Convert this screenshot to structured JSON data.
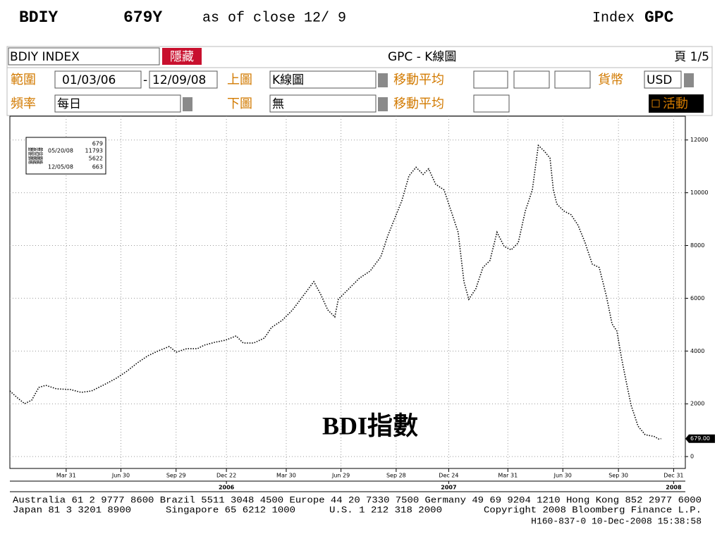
{
  "header": {
    "ticker": "BDIY",
    "price": "679Y",
    "as_of": "as of close 12/ 9",
    "index_label": "Index",
    "source": "GPC"
  },
  "toolbar": {
    "security": "BDIY INDEX",
    "hide_button": "隱藏",
    "screen_title": "GPC - K線圖",
    "page": "頁 1/5",
    "range_label": "範圍",
    "start_date": "01/03/06",
    "range_sep": "-",
    "end_date": "12/09/08",
    "upper_label": "上圖",
    "upper_value": "K線圖",
    "ma_label_1": "移動平均",
    "currency_label": "貨幣",
    "currency": "USD",
    "freq_label": "頻率",
    "freq_value": "每日",
    "lower_label": "下圖",
    "lower_value": "無",
    "ma_label_2": "移動平均",
    "active_button": "活動"
  },
  "chart_data": {
    "type": "line",
    "annotation": "BDI指數",
    "xlim": [
      2005.99,
      2009.05
    ],
    "ylim": [
      -450,
      12900
    ],
    "grid": true,
    "xticks": [
      {
        "value": 2006.245,
        "label": "Mar 31"
      },
      {
        "value": 2006.493,
        "label": "Jun 30"
      },
      {
        "value": 2006.743,
        "label": "Sep 29"
      },
      {
        "value": 2006.971,
        "label": "Dec 22"
      },
      {
        "value": 2007.242,
        "label": "Mar 30"
      },
      {
        "value": 2007.49,
        "label": "Jun 29"
      },
      {
        "value": 2007.74,
        "label": "Sep 28"
      },
      {
        "value": 2007.978,
        "label": "Dec 24"
      },
      {
        "value": 2008.246,
        "label": "Mar 31"
      },
      {
        "value": 2008.495,
        "label": "Jun 30"
      },
      {
        "value": 2008.747,
        "label": "Sep 30"
      },
      {
        "value": 2008.997,
        "label": "Dec 31"
      }
    ],
    "xtick_years": [
      {
        "value": 2006.971,
        "label": "2006"
      },
      {
        "value": 2007.978,
        "label": "2007"
      },
      {
        "value": 2008.997,
        "label": "2008"
      }
    ],
    "yticks": [
      0,
      2000,
      4000,
      6000,
      8000,
      10000,
      12000
    ],
    "last_price": {
      "value": 679,
      "label": "679.00"
    },
    "legend": [
      {
        "label": "最後價格",
        "value": "679"
      },
      {
        "label": "最高價格",
        "date": "05/20/08",
        "value": "11793"
      },
      {
        "label": "平均價格",
        "value": "5622"
      },
      {
        "label": "最低價格",
        "date": "12/05/08",
        "value": "663"
      }
    ],
    "x": [
      2005.99,
      2006.025,
      2006.057,
      2006.089,
      2006.121,
      2006.153,
      2006.201,
      2006.265,
      2006.313,
      2006.36,
      2006.392,
      2006.424,
      2006.472,
      2006.52,
      2006.568,
      2006.616,
      2006.664,
      2006.712,
      2006.744,
      2006.792,
      2006.84,
      2006.871,
      2006.919,
      2006.967,
      2007.015,
      2007.047,
      2007.095,
      2007.143,
      2007.175,
      2007.223,
      2007.271,
      2007.319,
      2007.367,
      2007.398,
      2007.43,
      2007.462,
      2007.478,
      2007.526,
      2007.574,
      2007.622,
      2007.67,
      2007.702,
      2007.734,
      2007.766,
      2007.798,
      2007.83,
      2007.862,
      2007.887,
      2007.919,
      2007.957,
      2007.989,
      2008.021,
      2008.047,
      2008.069,
      2008.101,
      2008.133,
      2008.165,
      2008.197,
      2008.229,
      2008.261,
      2008.293,
      2008.325,
      2008.357,
      2008.384,
      2008.411,
      2008.437,
      2008.452,
      2008.468,
      2008.5,
      2008.532,
      2008.564,
      2008.596,
      2008.628,
      2008.66,
      2008.692,
      2008.718,
      2008.74,
      2008.762,
      2008.781,
      2008.804,
      2008.836,
      2008.868,
      2008.91,
      2008.93,
      2008.94
    ],
    "series": [
      {
        "name": "BDIY INDEX",
        "color": "#000000",
        "values": [
          2487,
          2220,
          2005,
          2140,
          2620,
          2700,
          2567,
          2540,
          2433,
          2487,
          2620,
          2754,
          2968,
          3235,
          3556,
          3824,
          4011,
          4171,
          3957,
          4091,
          4091,
          4225,
          4332,
          4412,
          4572,
          4305,
          4305,
          4492,
          4893,
          5160,
          5561,
          6096,
          6631,
          6150,
          5561,
          5294,
          5963,
          6364,
          6765,
          7032,
          7567,
          8369,
          9037,
          9706,
          10642,
          10963,
          10695,
          10909,
          10321,
          10107,
          9305,
          8503,
          6631,
          5963,
          6364,
          7166,
          7433,
          8503,
          7968,
          7834,
          8102,
          9305,
          10107,
          11793,
          11578,
          11310,
          10107,
          9572,
          9305,
          9171,
          8770,
          8102,
          7299,
          7166,
          6096,
          5027,
          4759,
          3690,
          2888,
          1952,
          1150,
          829,
          760,
          663,
          679
        ]
      }
    ]
  },
  "footer": {
    "line1": "Australia 61 2 9777 8600 Brazil 5511 3048 4500 Europe 44 20 7330 7500 Germany 49 69 9204 1210 Hong Kong 852 2977 6000",
    "line2a": "Japan 81 3 3201 8900",
    "line2b": "Singapore 65 6212 1000",
    "line2c": "U.S. 1 212 318 2000",
    "line2d": "Copyright 2008 Bloomberg Finance L.P.",
    "line3": "H160-837-0 10-Dec-2008 15:38:58"
  }
}
